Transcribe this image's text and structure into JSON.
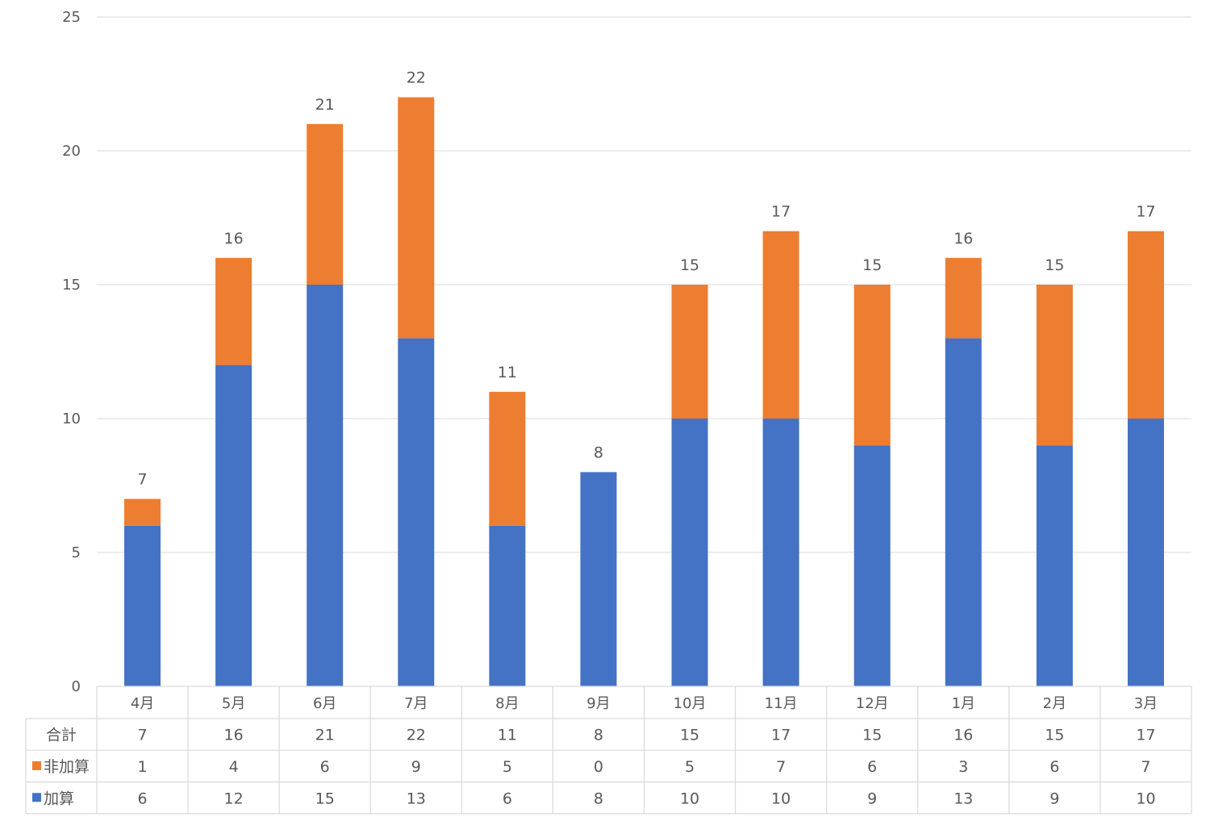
{
  "chart_data": {
    "type": "bar",
    "stacked": true,
    "categories": [
      "4月",
      "5月",
      "6月",
      "7月",
      "8月",
      "9月",
      "10月",
      "11月",
      "12月",
      "1月",
      "2月",
      "3月"
    ],
    "series": [
      {
        "name": "加算",
        "color": "#4472c4",
        "values": [
          6,
          12,
          15,
          13,
          6,
          8,
          10,
          10,
          9,
          13,
          9,
          10
        ]
      },
      {
        "name": "非加算",
        "color": "#ed7d31",
        "values": [
          1,
          4,
          6,
          9,
          5,
          0,
          5,
          7,
          6,
          3,
          6,
          7
        ]
      }
    ],
    "totals": {
      "name": "合計",
      "values": [
        7,
        16,
        21,
        22,
        11,
        8,
        15,
        17,
        15,
        16,
        15,
        17
      ]
    },
    "ylim": [
      0,
      25
    ],
    "yticks": [
      0,
      5,
      10,
      15,
      20,
      25
    ],
    "grid": true,
    "legend": "data-table",
    "data_table_rows": [
      "合計",
      "非加算",
      "加算"
    ]
  }
}
